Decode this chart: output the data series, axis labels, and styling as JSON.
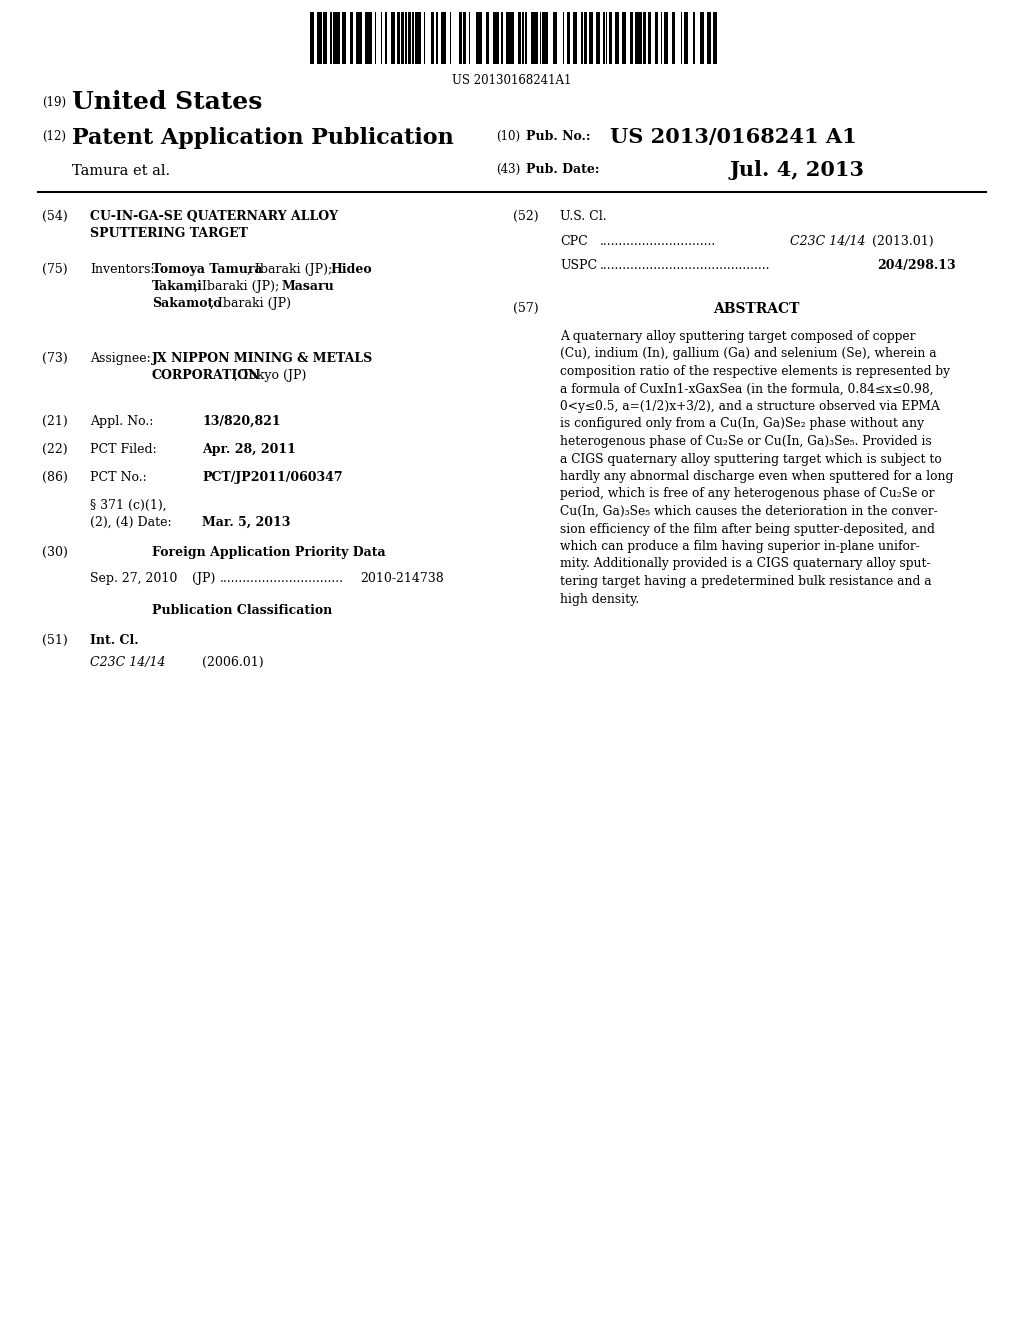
{
  "barcode_text": "US 20130168241A1",
  "country": "United States",
  "pub_type": "Patent Application Publication",
  "pub_number_label": "Pub. No.:",
  "pub_number": "US 2013/0168241 A1",
  "pub_date_label": "Pub. Date:",
  "pub_date": "Jul. 4, 2013",
  "authors": "Tamura et al.",
  "appl_no": "13/820,821",
  "pct_filed": "Apr. 28, 2011",
  "pct_no": "PCT/JP2011/060347",
  "pct_371_date": "Mar. 5, 2013",
  "int_cl_value": "C23C 14/14",
  "int_cl_year": "(2006.01)",
  "cpc_value": "C23C 14/14",
  "cpc_year": "(2013.01)",
  "uspc_value": "204/298.13",
  "abstract_lines": [
    "A quaternary alloy sputtering target composed of copper",
    "(Cu), indium (In), gallium (Ga) and selenium (Se), wherein a",
    "composition ratio of the respective elements is represented by",
    "a formula of CuxIn1-xGaxSea (in the formula, 0.84≤x≤0.98,",
    "0<y≤0.5, a=(1/2)x+3/2), and a structure observed via EPMA",
    "is configured only from a Cu(In, Ga)Se₂ phase without any",
    "heterogenous phase of Cu₂Se or Cu(In, Ga)₃Se₅. Provided is",
    "a CIGS quaternary alloy sputtering target which is subject to",
    "hardly any abnormal discharge even when sputtered for a long",
    "period, which is free of any heterogenous phase of Cu₂Se or",
    "Cu(In, Ga)₃Se₅ which causes the deterioration in the conver-",
    "sion efficiency of the film after being sputter-deposited, and",
    "which can produce a film having superior in-plane unifor-",
    "mity. Additionally provided is a CIGS quaternary alloy sput-",
    "tering target having a predetermined bulk resistance and a",
    "high density."
  ],
  "bg_color": "#ffffff",
  "text_color": "#000000"
}
